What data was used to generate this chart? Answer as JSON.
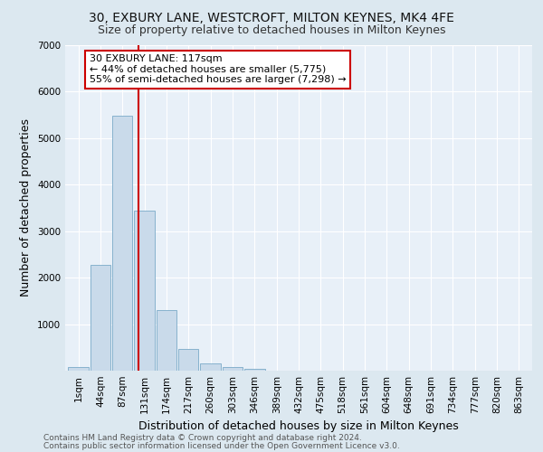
{
  "title_line1": "30, EXBURY LANE, WESTCROFT, MILTON KEYNES, MK4 4FE",
  "title_line2": "Size of property relative to detached houses in Milton Keynes",
  "xlabel": "Distribution of detached houses by size in Milton Keynes",
  "ylabel": "Number of detached properties",
  "footer_line1": "Contains HM Land Registry data © Crown copyright and database right 2024.",
  "footer_line2": "Contains public sector information licensed under the Open Government Licence v3.0.",
  "bar_labels": [
    "1sqm",
    "44sqm",
    "87sqm",
    "131sqm",
    "174sqm",
    "217sqm",
    "260sqm",
    "303sqm",
    "346sqm",
    "389sqm",
    "432sqm",
    "475sqm",
    "518sqm",
    "561sqm",
    "604sqm",
    "648sqm",
    "691sqm",
    "734sqm",
    "777sqm",
    "820sqm",
    "863sqm"
  ],
  "bar_values": [
    80,
    2280,
    5480,
    3450,
    1310,
    470,
    155,
    85,
    45,
    0,
    0,
    0,
    0,
    0,
    0,
    0,
    0,
    0,
    0,
    0,
    0
  ],
  "bar_color": "#c9daea",
  "bar_edge_color": "#7aaac8",
  "vline_x": 2.72,
  "vline_color": "#cc0000",
  "annotation_text": "30 EXBURY LANE: 117sqm\n← 44% of detached houses are smaller (5,775)\n55% of semi-detached houses are larger (7,298) →",
  "annotation_box_color": "#ffffff",
  "annotation_box_edge_color": "#cc0000",
  "ylim": [
    0,
    7000
  ],
  "yticks": [
    0,
    1000,
    2000,
    3000,
    4000,
    5000,
    6000,
    7000
  ],
  "bg_color": "#dce8f0",
  "plot_bg_color": "#e8f0f8",
  "grid_color": "#ffffff",
  "title_fontsize": 10,
  "subtitle_fontsize": 9,
  "tick_fontsize": 7.5,
  "ylabel_fontsize": 9,
  "xlabel_fontsize": 9,
  "footer_fontsize": 6.5,
  "annot_fontsize": 8
}
